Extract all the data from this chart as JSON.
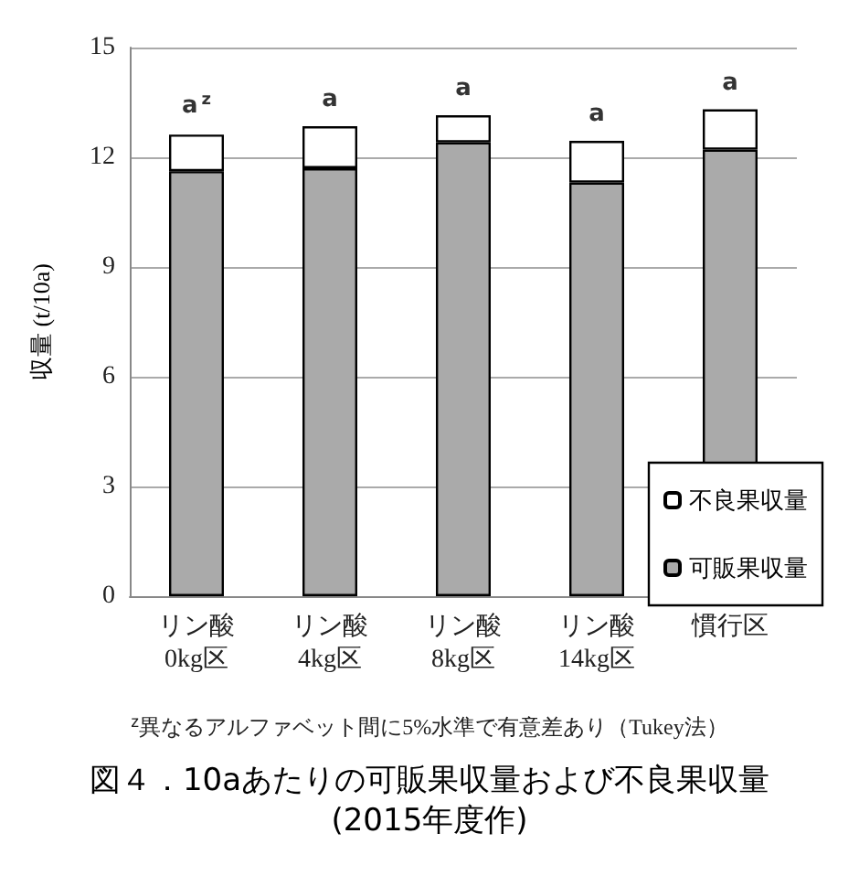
{
  "chart_data": {
    "type": "bar",
    "title": "図４．10aあたりの可販果収量および不良果収量\n(2015年度作)",
    "ylabel": "収量 (t/10a)",
    "categories": [
      "リン酸\n0kg区",
      "リン酸\n4kg区",
      "リン酸\n8kg区",
      "リン酸\n14kg区",
      "慣行区"
    ],
    "stacked": true,
    "series": [
      {
        "name": "可販果収量",
        "color": "#aaaaaa",
        "values": [
          11.62,
          11.7,
          12.41,
          11.31,
          12.21
        ]
      },
      {
        "name": "不良果収量",
        "color": "#ffffff",
        "values": [
          1.0,
          1.15,
          0.74,
          1.14,
          1.1
        ]
      }
    ],
    "ylim": [
      0,
      15
    ],
    "yticks": [
      0,
      3,
      6,
      9,
      12,
      15
    ],
    "grid": "y",
    "legend": "bottom right",
    "annotations": [
      {
        "text": "a$^{z}$",
        "x": "リン酸\n0kg区",
        "y": 12.62
      },
      {
        "text": "a",
        "x": "リン酸\n4kg区",
        "y": 12.85
      },
      {
        "text": "a",
        "x": "リン酸\n8kg区",
        "y": 13.15
      },
      {
        "text": "a",
        "x": "リン酸\n14kg区",
        "y": 12.45
      },
      {
        "text": "a",
        "x": "慣行区",
        "y": 13.31
      },
      "$^{z}$異なるアルファベット間に5%水準で有意差あり（Tukey法）"
    ]
  }
}
